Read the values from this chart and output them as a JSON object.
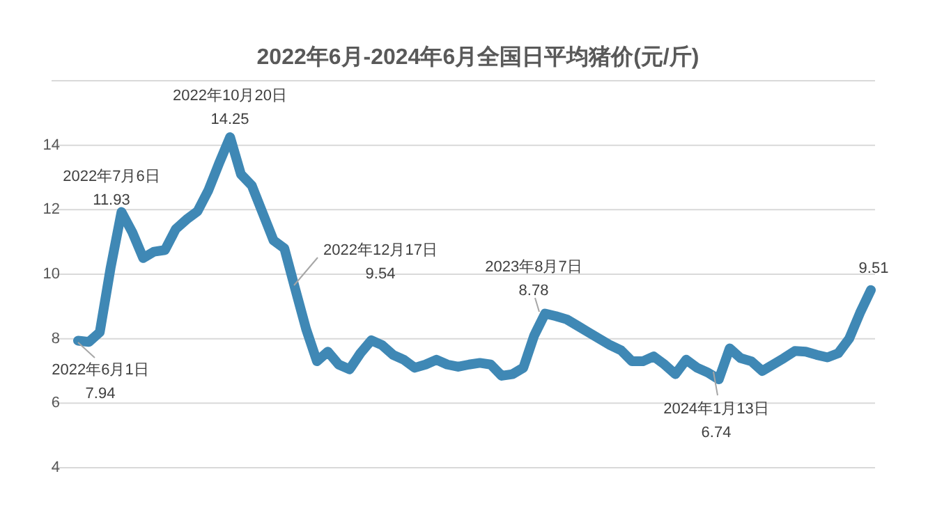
{
  "chart_data": {
    "type": "line",
    "title": "2022年6月-2024年6月全国日平均猪价(元/斤)",
    "categories": [
      null,
      null,
      null,
      null,
      null,
      null,
      null,
      null,
      null,
      null,
      null,
      null,
      null,
      null,
      null,
      null,
      null,
      null,
      null,
      null,
      null,
      null,
      null,
      null,
      null,
      null,
      null,
      null,
      null,
      null,
      null,
      null,
      null,
      null,
      null,
      null,
      null,
      null,
      null,
      null,
      null,
      null,
      null,
      null,
      null,
      null,
      null,
      null,
      null,
      null,
      null,
      null,
      null,
      null,
      null,
      null,
      null,
      null,
      null,
      null,
      null,
      null,
      null,
      null,
      null,
      null,
      null,
      null,
      null,
      null,
      null,
      null,
      null,
      null
    ],
    "values": [
      7.94,
      7.9,
      8.2,
      10.2,
      11.93,
      11.3,
      10.5,
      10.7,
      10.75,
      11.4,
      11.7,
      11.95,
      12.6,
      13.45,
      14.25,
      13.1,
      12.75,
      11.9,
      11.05,
      10.8,
      9.54,
      8.3,
      7.3,
      7.6,
      7.2,
      7.05,
      7.55,
      7.95,
      7.8,
      7.5,
      7.35,
      7.1,
      7.2,
      7.35,
      7.2,
      7.13,
      7.2,
      7.25,
      7.2,
      6.85,
      6.9,
      7.1,
      8.1,
      8.78,
      8.7,
      8.6,
      8.4,
      8.2,
      8.0,
      7.8,
      7.64,
      7.3,
      7.3,
      7.45,
      7.2,
      6.9,
      7.35,
      7.1,
      6.95,
      6.74,
      7.7,
      7.4,
      7.3,
      7.0,
      7.2,
      7.4,
      7.62,
      7.6,
      7.5,
      7.42,
      7.55,
      8.0,
      8.8,
      9.51
    ],
    "color": "#3f88b5",
    "ylim": [
      4,
      16
    ],
    "yticks": [
      4,
      6,
      8,
      10,
      12,
      14,
      {
        "value": 16,
        "label": null
      }
    ],
    "grid": "y",
    "tick_labels": "y",
    "annotations": [
      "2022年6月1日\n7.94",
      "2022年7月6日\n11.93",
      "2022年10月20日\n14.25",
      "2022年12月17日\n9.54",
      "2023年8月7日\n8.78",
      "2024年1月13日\n6.74",
      "9.51"
    ]
  }
}
